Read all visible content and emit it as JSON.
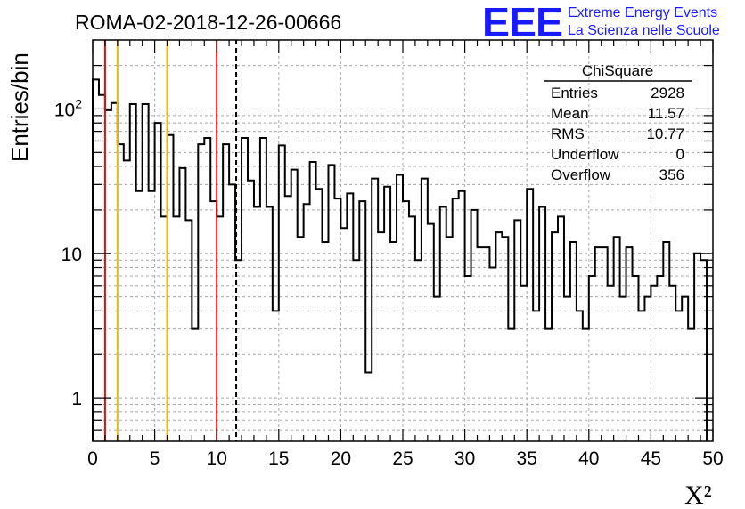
{
  "header": {
    "run_title": "ROMA-02-2018-12-26-00666",
    "logo_text": "EEE",
    "logo_line1": "Extreme Energy Events",
    "logo_line2": "La Scienza nelle Scuole",
    "logo_color": "#1a1aff"
  },
  "stats_box": {
    "title": "ChiSquare",
    "rows": [
      {
        "label": "Entries",
        "value": "2928"
      },
      {
        "label": "Mean",
        "value": "11.57"
      },
      {
        "label": "RMS",
        "value": "10.77"
      },
      {
        "label": "Underflow",
        "value": "0"
      },
      {
        "label": "Overflow",
        "value": "356"
      }
    ]
  },
  "chart_data": {
    "type": "histogram",
    "title": "ROMA-02-2018-12-26-00666",
    "xlabel": "X²",
    "ylabel": "Entries/bin",
    "xlim": [
      0,
      50
    ],
    "ylim": [
      0.5,
      300
    ],
    "yscale": "log",
    "grid": true,
    "bin_width": 0.5,
    "x_ticks": [
      "0",
      "5",
      "10",
      "15",
      "20",
      "25",
      "30",
      "35",
      "40",
      "45",
      "50"
    ],
    "y_ticks": [
      {
        "value": 1,
        "label": "1"
      },
      {
        "value": 10,
        "label": "10"
      },
      {
        "value": 100,
        "label": "10²"
      }
    ],
    "values": [
      160,
      125,
      98,
      110,
      57,
      44,
      108,
      27,
      108,
      27,
      80,
      18,
      66,
      18,
      39,
      17,
      3,
      57,
      63,
      23,
      18,
      57,
      30,
      9,
      63,
      32,
      21,
      63,
      21,
      4,
      56,
      25,
      38,
      13,
      22,
      43,
      28,
      12,
      41,
      24,
      15,
      26,
      9,
      23,
      1.5,
      33,
      14,
      29,
      12,
      35,
      23,
      18,
      9,
      33,
      16,
      5,
      21,
      13,
      24,
      27,
      7,
      20,
      11,
      11,
      8,
      14,
      13,
      3,
      17,
      6,
      28,
      4,
      21,
      3,
      14,
      18,
      5,
      12,
      4,
      3,
      7,
      11,
      11,
      6,
      13,
      5,
      11,
      7,
      4,
      5,
      6,
      7,
      12,
      6,
      4,
      5,
      3,
      10,
      9
    ],
    "vertical_lines": [
      {
        "x": 1,
        "color": "#e01010",
        "style": "solid"
      },
      {
        "x": 2,
        "color": "#f0b800",
        "style": "solid"
      },
      {
        "x": 6,
        "color": "#f0b800",
        "style": "solid"
      },
      {
        "x": 10,
        "color": "#e01010",
        "style": "solid"
      },
      {
        "x": 11.57,
        "color": "#000000",
        "style": "dashed"
      }
    ]
  }
}
